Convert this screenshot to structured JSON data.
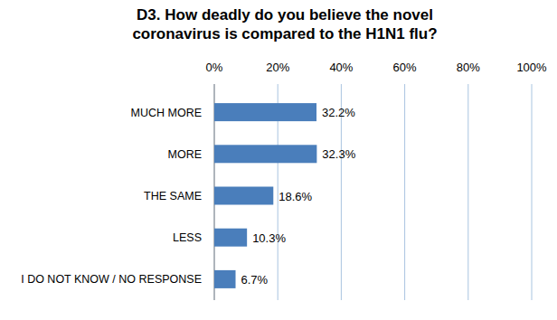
{
  "chart_data": {
    "type": "bar",
    "orientation": "horizontal",
    "title": "D3. How deadly do you believe the novel coronavirus is compared to the H1N1 flu?",
    "categories": [
      "MUCH MORE",
      "MORE",
      "THE SAME",
      "LESS",
      "I DO NOT KNOW / NO RESPONSE"
    ],
    "values": [
      32.2,
      32.3,
      18.6,
      10.3,
      6.7
    ],
    "value_labels": [
      "32.2%",
      "32.3%",
      "18.6%",
      "10.3%",
      "6.7%"
    ],
    "color": "#4a7ebb",
    "xlim": [
      0,
      100
    ],
    "xticks": [
      {
        "value": 0,
        "label": "0%"
      },
      {
        "value": 20,
        "label": "20%"
      },
      {
        "value": 40,
        "label": "40%"
      },
      {
        "value": 60,
        "label": "60%"
      },
      {
        "value": 80,
        "label": "80%"
      },
      {
        "value": 100,
        "label": "100%"
      }
    ],
    "grid": true,
    "data_labels": true
  }
}
